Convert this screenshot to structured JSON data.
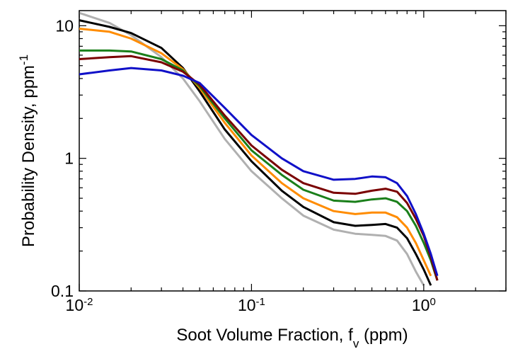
{
  "chart_data": {
    "type": "line",
    "xlabel": "Soot Volume Fraction, f",
    "xlabel_subscript": "v",
    "xlabel_suffix": " (ppm)",
    "ylabel": "Probability Density, ppm",
    "ylabel_superscript": "-1",
    "x_scale": "log",
    "y_scale": "log",
    "xlim": [
      0.01,
      3.0
    ],
    "ylim": [
      0.1,
      13.0
    ],
    "x_ticks": [
      {
        "value": 0.01,
        "base": "10",
        "exp": "-2"
      },
      {
        "value": 0.1,
        "base": "10",
        "exp": "-1"
      },
      {
        "value": 1,
        "base": "10",
        "exp": "0"
      }
    ],
    "y_ticks": [
      {
        "value": 10,
        "label": "10"
      },
      {
        "value": 1,
        "label": "1"
      },
      {
        "value": 0.1,
        "label": "0.1"
      }
    ],
    "grid": false,
    "legend": "none",
    "series": [
      {
        "color": "#b0b0b0",
        "points": [
          [
            0.01,
            12.5
          ],
          [
            0.015,
            10.5
          ],
          [
            0.02,
            8.5
          ],
          [
            0.03,
            5.8
          ],
          [
            0.04,
            4.0
          ],
          [
            0.05,
            2.7
          ],
          [
            0.07,
            1.4
          ],
          [
            0.1,
            0.8
          ],
          [
            0.15,
            0.5
          ],
          [
            0.2,
            0.37
          ],
          [
            0.3,
            0.29
          ],
          [
            0.4,
            0.27
          ],
          [
            0.5,
            0.265
          ],
          [
            0.6,
            0.26
          ],
          [
            0.7,
            0.24
          ],
          [
            0.8,
            0.19
          ],
          [
            0.9,
            0.14
          ],
          [
            1.0,
            0.11
          ],
          [
            1.05,
            0.095
          ]
        ]
      },
      {
        "color": "#000000",
        "points": [
          [
            0.01,
            11.0
          ],
          [
            0.015,
            9.8
          ],
          [
            0.02,
            8.8
          ],
          [
            0.03,
            6.8
          ],
          [
            0.04,
            4.8
          ],
          [
            0.05,
            3.2
          ],
          [
            0.07,
            1.65
          ],
          [
            0.1,
            0.95
          ],
          [
            0.15,
            0.57
          ],
          [
            0.2,
            0.43
          ],
          [
            0.3,
            0.33
          ],
          [
            0.4,
            0.31
          ],
          [
            0.5,
            0.315
          ],
          [
            0.6,
            0.32
          ],
          [
            0.7,
            0.3
          ],
          [
            0.8,
            0.25
          ],
          [
            0.9,
            0.19
          ],
          [
            1.0,
            0.145
          ],
          [
            1.1,
            0.11
          ],
          [
            1.15,
            0.095
          ]
        ]
      },
      {
        "color": "#ff8c00",
        "points": [
          [
            0.01,
            9.5
          ],
          [
            0.015,
            9.0
          ],
          [
            0.02,
            8.0
          ],
          [
            0.03,
            6.2
          ],
          [
            0.04,
            4.7
          ],
          [
            0.05,
            3.4
          ],
          [
            0.07,
            1.85
          ],
          [
            0.1,
            1.05
          ],
          [
            0.15,
            0.65
          ],
          [
            0.2,
            0.5
          ],
          [
            0.3,
            0.4
          ],
          [
            0.4,
            0.38
          ],
          [
            0.5,
            0.39
          ],
          [
            0.6,
            0.39
          ],
          [
            0.7,
            0.36
          ],
          [
            0.8,
            0.3
          ],
          [
            0.9,
            0.23
          ],
          [
            1.0,
            0.17
          ],
          [
            1.1,
            0.13
          ],
          [
            1.18,
            0.095
          ]
        ]
      },
      {
        "color": "#1a7f1a",
        "points": [
          [
            0.01,
            6.5
          ],
          [
            0.015,
            6.5
          ],
          [
            0.02,
            6.4
          ],
          [
            0.03,
            5.6
          ],
          [
            0.04,
            4.6
          ],
          [
            0.05,
            3.5
          ],
          [
            0.07,
            2.0
          ],
          [
            0.1,
            1.15
          ],
          [
            0.15,
            0.75
          ],
          [
            0.2,
            0.58
          ],
          [
            0.3,
            0.48
          ],
          [
            0.4,
            0.47
          ],
          [
            0.5,
            0.49
          ],
          [
            0.6,
            0.5
          ],
          [
            0.7,
            0.47
          ],
          [
            0.8,
            0.4
          ],
          [
            0.9,
            0.31
          ],
          [
            1.0,
            0.23
          ],
          [
            1.1,
            0.17
          ],
          [
            1.2,
            0.12
          ],
          [
            1.25,
            0.095
          ]
        ]
      },
      {
        "color": "#7a0000",
        "points": [
          [
            0.01,
            5.6
          ],
          [
            0.015,
            5.8
          ],
          [
            0.02,
            5.9
          ],
          [
            0.03,
            5.3
          ],
          [
            0.04,
            4.5
          ],
          [
            0.05,
            3.6
          ],
          [
            0.07,
            2.1
          ],
          [
            0.1,
            1.25
          ],
          [
            0.15,
            0.82
          ],
          [
            0.2,
            0.65
          ],
          [
            0.3,
            0.55
          ],
          [
            0.4,
            0.54
          ],
          [
            0.5,
            0.57
          ],
          [
            0.6,
            0.59
          ],
          [
            0.7,
            0.56
          ],
          [
            0.8,
            0.46
          ],
          [
            0.9,
            0.35
          ],
          [
            1.0,
            0.26
          ],
          [
            1.1,
            0.18
          ],
          [
            1.2,
            0.12
          ],
          [
            1.22,
            0.095
          ]
        ]
      },
      {
        "color": "#1010c8",
        "points": [
          [
            0.01,
            4.3
          ],
          [
            0.015,
            4.6
          ],
          [
            0.02,
            4.8
          ],
          [
            0.03,
            4.6
          ],
          [
            0.04,
            4.2
          ],
          [
            0.05,
            3.7
          ],
          [
            0.07,
            2.4
          ],
          [
            0.1,
            1.5
          ],
          [
            0.15,
            1.0
          ],
          [
            0.2,
            0.8
          ],
          [
            0.3,
            0.69
          ],
          [
            0.4,
            0.7
          ],
          [
            0.5,
            0.73
          ],
          [
            0.6,
            0.72
          ],
          [
            0.7,
            0.65
          ],
          [
            0.8,
            0.52
          ],
          [
            0.9,
            0.38
          ],
          [
            1.0,
            0.27
          ],
          [
            1.1,
            0.19
          ],
          [
            1.2,
            0.13
          ],
          [
            1.22,
            0.095
          ]
        ]
      }
    ]
  }
}
